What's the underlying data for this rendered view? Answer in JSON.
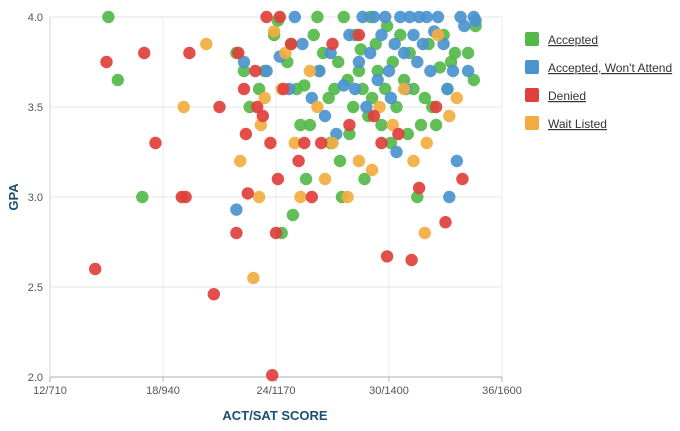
{
  "chart_data": {
    "type": "scatter",
    "title": "",
    "xlabel": "ACT/SAT SCORE",
    "ylabel": "GPA",
    "xlim": [
      12,
      36
    ],
    "ylim": [
      2.0,
      4.0
    ],
    "x_ticks": [
      {
        "value": 12,
        "label": "12/710"
      },
      {
        "value": 18,
        "label": "18/940"
      },
      {
        "value": 24,
        "label": "24/1170"
      },
      {
        "value": 30,
        "label": "30/1400"
      },
      {
        "value": 36,
        "label": "36/1600"
      }
    ],
    "y_ticks": [
      {
        "value": 2.0,
        "label": "2.0"
      },
      {
        "value": 2.5,
        "label": "2.5"
      },
      {
        "value": 3.0,
        "label": "3.0"
      },
      {
        "value": 3.5,
        "label": "3.5"
      },
      {
        "value": 4.0,
        "label": "4.0"
      }
    ],
    "grid": true,
    "legend_position": "right",
    "series": [
      {
        "name": "Accepted",
        "color": "#55b94a",
        "points": [
          [
            15.1,
            4.0
          ],
          [
            15.6,
            3.65
          ],
          [
            16.9,
            3.0
          ],
          [
            21.9,
            3.8
          ],
          [
            22.3,
            3.7
          ],
          [
            22.6,
            3.5
          ],
          [
            23.1,
            3.6
          ],
          [
            23.4,
            3.7
          ],
          [
            23.9,
            3.9
          ],
          [
            24.1,
            3.98
          ],
          [
            24.3,
            2.8
          ],
          [
            24.6,
            3.75
          ],
          [
            24.8,
            3.85
          ],
          [
            24.9,
            2.9
          ],
          [
            25.1,
            3.6
          ],
          [
            25.3,
            3.4
          ],
          [
            25.5,
            3.62
          ],
          [
            25.6,
            3.1
          ],
          [
            25.8,
            3.4
          ],
          [
            26.0,
            3.9
          ],
          [
            26.2,
            4.0
          ],
          [
            26.3,
            3.7
          ],
          [
            26.5,
            3.8
          ],
          [
            26.8,
            3.55
          ],
          [
            26.9,
            3.3
          ],
          [
            27.1,
            3.6
          ],
          [
            27.3,
            3.75
          ],
          [
            27.4,
            3.2
          ],
          [
            27.5,
            3.0
          ],
          [
            27.6,
            4.0
          ],
          [
            27.8,
            3.65
          ],
          [
            27.9,
            3.35
          ],
          [
            28.1,
            3.5
          ],
          [
            28.2,
            3.9
          ],
          [
            28.4,
            3.7
          ],
          [
            28.5,
            3.82
          ],
          [
            28.6,
            3.6
          ],
          [
            28.7,
            3.1
          ],
          [
            28.9,
            3.45
          ],
          [
            29.0,
            4.0
          ],
          [
            29.1,
            3.55
          ],
          [
            29.3,
            3.85
          ],
          [
            29.4,
            3.7
          ],
          [
            29.6,
            3.4
          ],
          [
            29.8,
            3.6
          ],
          [
            29.9,
            3.95
          ],
          [
            30.1,
            3.3
          ],
          [
            30.2,
            3.75
          ],
          [
            30.4,
            3.5
          ],
          [
            30.6,
            3.9
          ],
          [
            30.8,
            3.65
          ],
          [
            31.0,
            3.35
          ],
          [
            31.1,
            3.8
          ],
          [
            31.3,
            3.6
          ],
          [
            31.5,
            3.0
          ],
          [
            31.7,
            3.4
          ],
          [
            31.9,
            3.55
          ],
          [
            32.1,
            3.85
          ],
          [
            32.3,
            3.5
          ],
          [
            32.5,
            3.4
          ],
          [
            32.7,
            3.72
          ],
          [
            32.9,
            3.9
          ],
          [
            33.1,
            3.6
          ],
          [
            33.3,
            3.75
          ],
          [
            33.5,
            3.8
          ],
          [
            34.2,
            3.8
          ],
          [
            34.5,
            3.65
          ],
          [
            34.6,
            3.95
          ]
        ]
      },
      {
        "name": "Accepted, Won't Attend",
        "color": "#4b94cf",
        "points": [
          [
            21.9,
            2.93
          ],
          [
            22.3,
            3.75
          ],
          [
            23.5,
            3.7
          ],
          [
            24.2,
            3.78
          ],
          [
            24.7,
            3.6
          ],
          [
            25.0,
            4.0
          ],
          [
            25.4,
            3.85
          ],
          [
            25.9,
            3.55
          ],
          [
            26.3,
            3.7
          ],
          [
            26.6,
            3.45
          ],
          [
            26.9,
            3.8
          ],
          [
            27.2,
            3.35
          ],
          [
            27.6,
            3.62
          ],
          [
            27.9,
            3.9
          ],
          [
            28.2,
            3.6
          ],
          [
            28.4,
            3.75
          ],
          [
            28.6,
            4.0
          ],
          [
            28.8,
            3.5
          ],
          [
            29.0,
            3.8
          ],
          [
            29.2,
            4.0
          ],
          [
            29.4,
            3.65
          ],
          [
            29.6,
            3.9
          ],
          [
            29.8,
            4.0
          ],
          [
            30.0,
            3.7
          ],
          [
            30.1,
            3.55
          ],
          [
            30.3,
            3.85
          ],
          [
            30.4,
            3.25
          ],
          [
            30.6,
            4.0
          ],
          [
            30.8,
            3.8
          ],
          [
            30.9,
            3.6
          ],
          [
            31.1,
            4.0
          ],
          [
            31.3,
            3.9
          ],
          [
            31.5,
            3.75
          ],
          [
            31.6,
            4.0
          ],
          [
            31.8,
            3.85
          ],
          [
            32.0,
            4.0
          ],
          [
            32.2,
            3.7
          ],
          [
            32.4,
            3.92
          ],
          [
            32.6,
            4.0
          ],
          [
            32.9,
            3.85
          ],
          [
            33.1,
            3.6
          ],
          [
            33.2,
            3.0
          ],
          [
            33.4,
            3.7
          ],
          [
            33.6,
            3.2
          ],
          [
            33.8,
            4.0
          ],
          [
            34.0,
            3.95
          ],
          [
            34.2,
            3.7
          ],
          [
            34.5,
            4.0
          ],
          [
            34.6,
            3.98
          ]
        ]
      },
      {
        "name": "Denied",
        "color": "#e0403b",
        "points": [
          [
            14.4,
            2.6
          ],
          [
            15.0,
            3.75
          ],
          [
            17.0,
            3.8
          ],
          [
            17.6,
            3.3
          ],
          [
            19.0,
            3.0
          ],
          [
            19.2,
            3.0
          ],
          [
            19.4,
            3.8
          ],
          [
            20.7,
            2.46
          ],
          [
            21.0,
            3.5
          ],
          [
            21.9,
            2.8
          ],
          [
            22.0,
            3.8
          ],
          [
            22.3,
            3.6
          ],
          [
            22.4,
            3.35
          ],
          [
            22.5,
            3.02
          ],
          [
            22.9,
            3.7
          ],
          [
            23.0,
            3.5
          ],
          [
            23.3,
            3.45
          ],
          [
            23.5,
            4.0
          ],
          [
            23.7,
            3.3
          ],
          [
            23.8,
            2.01
          ],
          [
            24.0,
            2.8
          ],
          [
            24.1,
            3.1
          ],
          [
            24.2,
            4.0
          ],
          [
            24.4,
            3.6
          ],
          [
            24.8,
            3.85
          ],
          [
            25.2,
            3.2
          ],
          [
            25.5,
            3.3
          ],
          [
            25.9,
            3.0
          ],
          [
            26.4,
            3.3
          ],
          [
            27.0,
            3.85
          ],
          [
            27.9,
            3.4
          ],
          [
            28.4,
            3.9
          ],
          [
            29.2,
            3.45
          ],
          [
            29.6,
            3.3
          ],
          [
            29.9,
            2.67
          ],
          [
            30.5,
            3.35
          ],
          [
            31.2,
            2.65
          ],
          [
            31.6,
            3.05
          ],
          [
            32.5,
            3.5
          ],
          [
            33.0,
            2.86
          ],
          [
            33.9,
            3.1
          ]
        ]
      },
      {
        "name": "Wait Listed",
        "color": "#f2ac3f",
        "points": [
          [
            19.1,
            3.5
          ],
          [
            20.3,
            3.85
          ],
          [
            22.1,
            3.2
          ],
          [
            22.8,
            2.55
          ],
          [
            23.1,
            3.0
          ],
          [
            23.2,
            3.4
          ],
          [
            23.4,
            3.55
          ],
          [
            23.9,
            3.92
          ],
          [
            24.3,
            3.6
          ],
          [
            24.5,
            3.8
          ],
          [
            25.0,
            3.3
          ],
          [
            25.3,
            3.0
          ],
          [
            25.8,
            3.7
          ],
          [
            26.2,
            3.5
          ],
          [
            26.6,
            3.1
          ],
          [
            27.0,
            3.3
          ],
          [
            27.8,
            3.0
          ],
          [
            28.4,
            3.2
          ],
          [
            29.1,
            3.15
          ],
          [
            29.5,
            3.5
          ],
          [
            30.2,
            3.4
          ],
          [
            30.8,
            3.6
          ],
          [
            31.3,
            3.2
          ],
          [
            31.9,
            2.8
          ],
          [
            32.0,
            3.3
          ],
          [
            32.6,
            3.9
          ],
          [
            33.2,
            3.45
          ],
          [
            33.6,
            3.55
          ]
        ]
      }
    ]
  }
}
